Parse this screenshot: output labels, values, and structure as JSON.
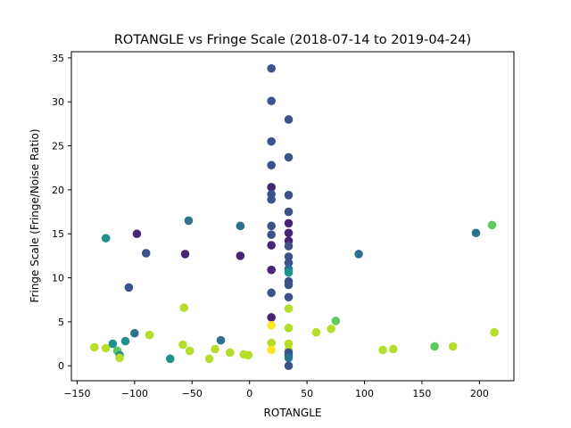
{
  "chart_data": {
    "type": "scatter",
    "title": "ROTANGLE vs Fringe Scale (2018-07-14 to 2019-04-24)",
    "xlabel": "ROTANGLE",
    "ylabel": "Fringe Scale (Fringe/Noise Ratio)",
    "xlim": [
      -155,
      230
    ],
    "ylim": [
      -1.7,
      35.7
    ],
    "xticks": [
      -150,
      -100,
      -50,
      0,
      50,
      100,
      150,
      200
    ],
    "yticks": [
      0,
      5,
      10,
      15,
      20,
      25,
      30,
      35
    ],
    "grid": false,
    "colors": {
      "dark_purple": "#482475",
      "dark_blue": "#3b528b",
      "blue": "#2c728e",
      "teal": "#21918c",
      "green": "#5ec962",
      "yellow_green": "#b5de2b",
      "yellow": "#fde725"
    },
    "points": [
      {
        "x": -135,
        "y": 2.1,
        "c": "yellow_green"
      },
      {
        "x": -125,
        "y": 14.5,
        "c": "teal"
      },
      {
        "x": -125,
        "y": 2.0,
        "c": "yellow_green"
      },
      {
        "x": -119,
        "y": 2.5,
        "c": "teal"
      },
      {
        "x": -115,
        "y": 1.7,
        "c": "green"
      },
      {
        "x": -113,
        "y": 1.2,
        "c": "teal"
      },
      {
        "x": -113,
        "y": 0.9,
        "c": "yellow_green"
      },
      {
        "x": -108,
        "y": 2.8,
        "c": "teal"
      },
      {
        "x": -105,
        "y": 8.9,
        "c": "dark_blue"
      },
      {
        "x": -100,
        "y": 3.7,
        "c": "blue"
      },
      {
        "x": -98,
        "y": 15.0,
        "c": "dark_purple"
      },
      {
        "x": -90,
        "y": 12.8,
        "c": "dark_blue"
      },
      {
        "x": -87,
        "y": 3.5,
        "c": "yellow_green"
      },
      {
        "x": -69,
        "y": 0.8,
        "c": "teal"
      },
      {
        "x": -58,
        "y": 2.4,
        "c": "yellow_green"
      },
      {
        "x": -57,
        "y": 6.6,
        "c": "yellow_green"
      },
      {
        "x": -56,
        "y": 12.7,
        "c": "dark_purple"
      },
      {
        "x": -53,
        "y": 16.5,
        "c": "blue"
      },
      {
        "x": -52,
        "y": 1.7,
        "c": "yellow_green"
      },
      {
        "x": -35,
        "y": 0.8,
        "c": "yellow_green"
      },
      {
        "x": -30,
        "y": 1.9,
        "c": "yellow_green"
      },
      {
        "x": -25,
        "y": 2.9,
        "c": "blue"
      },
      {
        "x": -17,
        "y": 1.5,
        "c": "yellow_green"
      },
      {
        "x": -8,
        "y": 15.9,
        "c": "blue"
      },
      {
        "x": -8,
        "y": 12.5,
        "c": "dark_purple"
      },
      {
        "x": -5,
        "y": 1.3,
        "c": "yellow_green"
      },
      {
        "x": -1,
        "y": 1.2,
        "c": "yellow_green"
      },
      {
        "x": 19,
        "y": 33.8,
        "c": "dark_blue"
      },
      {
        "x": 19,
        "y": 30.1,
        "c": "dark_blue"
      },
      {
        "x": 19,
        "y": 25.5,
        "c": "dark_blue"
      },
      {
        "x": 19,
        "y": 22.8,
        "c": "dark_blue"
      },
      {
        "x": 19,
        "y": 20.3,
        "c": "dark_purple"
      },
      {
        "x": 19,
        "y": 19.5,
        "c": "dark_blue"
      },
      {
        "x": 19,
        "y": 18.9,
        "c": "dark_blue"
      },
      {
        "x": 19,
        "y": 15.9,
        "c": "dark_blue"
      },
      {
        "x": 19,
        "y": 14.9,
        "c": "dark_blue"
      },
      {
        "x": 19,
        "y": 13.7,
        "c": "dark_purple"
      },
      {
        "x": 19,
        "y": 10.9,
        "c": "dark_purple"
      },
      {
        "x": 19,
        "y": 8.3,
        "c": "dark_blue"
      },
      {
        "x": 19,
        "y": 5.5,
        "c": "dark_purple"
      },
      {
        "x": 19,
        "y": 4.6,
        "c": "yellow"
      },
      {
        "x": 19,
        "y": 2.6,
        "c": "yellow_green"
      },
      {
        "x": 19,
        "y": 1.8,
        "c": "yellow"
      },
      {
        "x": 34,
        "y": 28.0,
        "c": "dark_blue"
      },
      {
        "x": 34,
        "y": 23.7,
        "c": "dark_blue"
      },
      {
        "x": 34,
        "y": 19.4,
        "c": "dark_blue"
      },
      {
        "x": 34,
        "y": 17.5,
        "c": "dark_blue"
      },
      {
        "x": 34,
        "y": 16.2,
        "c": "dark_purple"
      },
      {
        "x": 34,
        "y": 15.1,
        "c": "dark_purple"
      },
      {
        "x": 34,
        "y": 14.2,
        "c": "dark_purple"
      },
      {
        "x": 34,
        "y": 13.6,
        "c": "dark_blue"
      },
      {
        "x": 34,
        "y": 12.4,
        "c": "dark_blue"
      },
      {
        "x": 34,
        "y": 11.7,
        "c": "dark_blue"
      },
      {
        "x": 34,
        "y": 11.0,
        "c": "blue"
      },
      {
        "x": 34,
        "y": 10.6,
        "c": "teal"
      },
      {
        "x": 34,
        "y": 9.6,
        "c": "dark_blue"
      },
      {
        "x": 34,
        "y": 9.2,
        "c": "dark_blue"
      },
      {
        "x": 34,
        "y": 7.8,
        "c": "dark_blue"
      },
      {
        "x": 34,
        "y": 6.5,
        "c": "yellow_green"
      },
      {
        "x": 34,
        "y": 4.3,
        "c": "yellow_green"
      },
      {
        "x": 34,
        "y": 2.5,
        "c": "yellow_green"
      },
      {
        "x": 34,
        "y": 1.8,
        "c": "yellow_green"
      },
      {
        "x": 34,
        "y": 1.5,
        "c": "dark_blue"
      },
      {
        "x": 34,
        "y": 1.2,
        "c": "dark_blue"
      },
      {
        "x": 34,
        "y": 0.9,
        "c": "blue"
      },
      {
        "x": 34,
        "y": 0.0,
        "c": "dark_blue"
      },
      {
        "x": 58,
        "y": 3.8,
        "c": "yellow_green"
      },
      {
        "x": 71,
        "y": 4.2,
        "c": "yellow_green"
      },
      {
        "x": 75,
        "y": 5.1,
        "c": "green"
      },
      {
        "x": 95,
        "y": 12.7,
        "c": "blue"
      },
      {
        "x": 116,
        "y": 1.8,
        "c": "yellow_green"
      },
      {
        "x": 125,
        "y": 1.9,
        "c": "yellow_green"
      },
      {
        "x": 161,
        "y": 2.2,
        "c": "green"
      },
      {
        "x": 177,
        "y": 2.2,
        "c": "yellow_green"
      },
      {
        "x": 197,
        "y": 15.1,
        "c": "blue"
      },
      {
        "x": 211,
        "y": 16.0,
        "c": "green"
      },
      {
        "x": 213,
        "y": 3.8,
        "c": "yellow_green"
      }
    ]
  }
}
